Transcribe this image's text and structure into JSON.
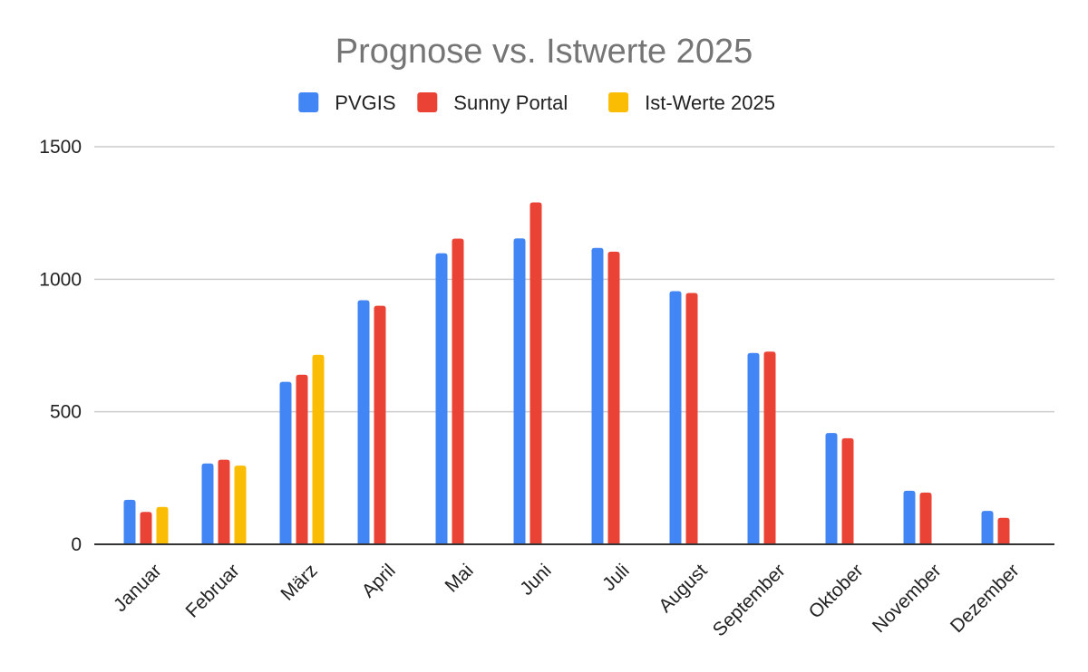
{
  "chart_data": {
    "type": "bar",
    "title": "Prognose vs. Istwerte 2025",
    "xlabel": "",
    "ylabel": "",
    "ylim": [
      0,
      1500
    ],
    "yticks": [
      0,
      500,
      1000,
      1500
    ],
    "grid": true,
    "legend_position": "top",
    "categories": [
      "Januar",
      "Februar",
      "März",
      "April",
      "Mai",
      "Juni",
      "Juli",
      "August",
      "September",
      "Oktober",
      "November",
      "Dezember"
    ],
    "series": [
      {
        "name": "PVGIS",
        "color": "#4285f4",
        "values": [
          168,
          305,
          613,
          921,
          1098,
          1154,
          1118,
          955,
          722,
          420,
          202,
          126
        ]
      },
      {
        "name": "Sunny Portal",
        "color": "#ea4335",
        "values": [
          122,
          319,
          640,
          900,
          1153,
          1290,
          1104,
          948,
          727,
          400,
          195,
          100
        ]
      },
      {
        "name": "Ist-Werte 2025",
        "color": "#fbbc04",
        "values": [
          141,
          297,
          715,
          null,
          null,
          null,
          null,
          null,
          null,
          null,
          null,
          null
        ]
      }
    ]
  }
}
